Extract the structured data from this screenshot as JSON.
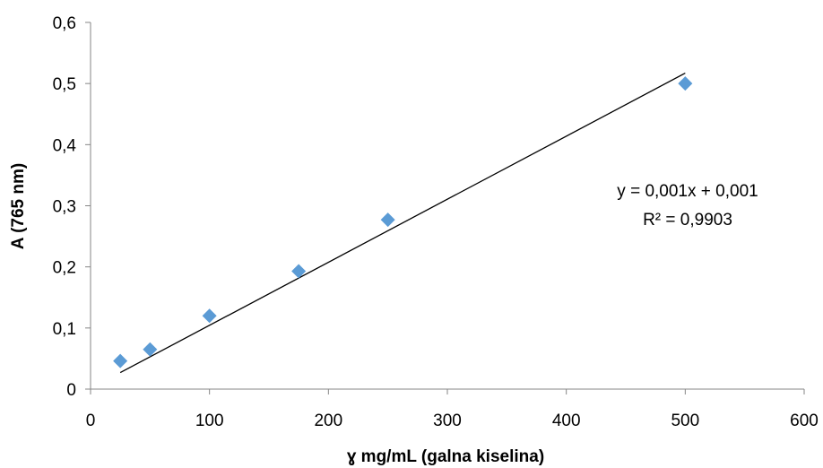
{
  "chart_data": {
    "type": "scatter",
    "title": "",
    "xlabel": "ɣ  mg/mL (galna kiselina)",
    "ylabel": "A (765 nm)",
    "xlim": [
      0,
      600
    ],
    "ylim": [
      0,
      0.6
    ],
    "x_ticks": [
      0,
      100,
      200,
      300,
      400,
      500,
      600
    ],
    "x_tick_labels": [
      "0",
      "100",
      "200",
      "300",
      "400",
      "500",
      "600"
    ],
    "y_ticks": [
      0,
      0.1,
      0.2,
      0.3,
      0.4,
      0.5,
      0.6
    ],
    "y_tick_labels": [
      "0",
      "0,1",
      "0,2",
      "0,3",
      "0,4",
      "0,5",
      "0,6"
    ],
    "grid": false,
    "series": [
      {
        "marker": "diamond",
        "color": "#5b9bd5",
        "x": [
          25,
          50,
          100,
          175,
          250,
          500
        ],
        "y": [
          0.046,
          0.065,
          0.12,
          0.193,
          0.277,
          0.5
        ]
      }
    ],
    "trendline": {
      "type": "linear",
      "color": "#000000",
      "x_range": [
        25,
        500
      ],
      "y_range": [
        0.027,
        0.517
      ]
    },
    "annotations": {
      "equation": "y = 0,001x + 0,001",
      "r_squared": "R² = 0,9903"
    }
  }
}
